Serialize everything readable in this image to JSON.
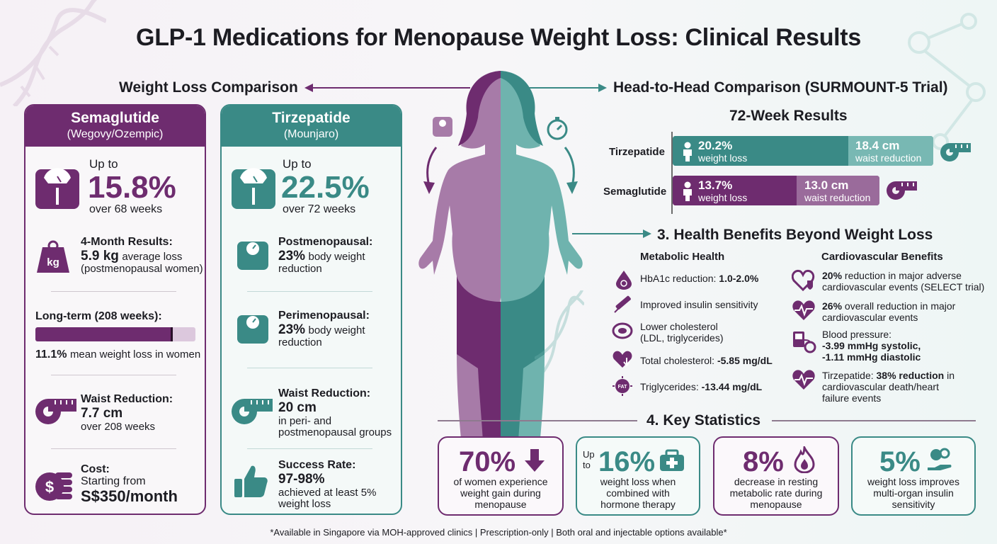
{
  "title": "GLP-1 Medications for Menopause Weight Loss: Clinical Results",
  "weight_loss_comparison": {
    "label": "Weight Loss Comparison"
  },
  "semaglutide": {
    "name": "Semaglutide",
    "brands": "(Wegovy/Ozempic)",
    "up_to": "Up to",
    "max_loss": "15.8%",
    "duration": "over 68 weeks",
    "four_month_title": "4-Month Results:",
    "four_month_value": "5.9 kg",
    "four_month_suffix": "average loss",
    "four_month_note": "(postmenopausal women)",
    "kg_icon_text": "kg",
    "long_term_title": "Long-term (208 weeks):",
    "long_term_progress": 0.86,
    "long_term_value": "11.1%",
    "long_term_suffix": "mean weight loss in women",
    "waist_title": "Waist Reduction:",
    "waist_value": "7.7 cm",
    "waist_duration": "over 208 weeks",
    "cost_title": "Cost:",
    "cost_prefix": "Starting from",
    "cost_value": "S$350/month"
  },
  "tirzepatide": {
    "name": "Tirzepatide",
    "brands": "(Mounjaro)",
    "up_to": "Up to",
    "max_loss": "22.5%",
    "duration": "over 72 weeks",
    "post_title": "Postmenopausal:",
    "post_value": "23%",
    "post_suffix": "body weight",
    "post_suffix2": "reduction",
    "peri_title": "Perimenopausal:",
    "peri_value": "23%",
    "peri_suffix": "body weight",
    "peri_suffix2": "reduction",
    "waist_title": "Waist Reduction:",
    "waist_value": "20 cm",
    "waist_note1": "in peri- and",
    "waist_note2": "postmenopausal groups",
    "success_title": "Success Rate:",
    "success_value": "97-98%",
    "success_note1": "achieved at least 5%",
    "success_note2": "weight loss"
  },
  "head_to_head": {
    "label": "Head-to-Head Comparison (SURMOUNT-5 Trial)",
    "subtitle": "72-Week Results",
    "rows": [
      {
        "drug": "Tirzepatide",
        "weight_value": "20.2%",
        "weight_label": "weight loss",
        "waist_value": "18.4 cm",
        "waist_label": "waist reduction",
        "color": "#3a8a86"
      },
      {
        "drug": "Semaglutide",
        "weight_value": "13.7%",
        "weight_label": "weight loss",
        "waist_value": "13.0 cm",
        "waist_label": "waist reduction",
        "color": "#6e2c6f"
      }
    ]
  },
  "health_benefits": {
    "label": "3. Health Benefits Beyond Weight Loss",
    "metabolic_title": "Metabolic Health",
    "cardio_title": "Cardiovascular Benefits",
    "metabolic": [
      {
        "text": "HbA1c reduction: ",
        "bold": "1.0-2.0%",
        "icon": "blood-drop-icon"
      },
      {
        "text": "Improved insulin sensitivity",
        "bold": "",
        "icon": "insulin-pen-icon"
      },
      {
        "text": "Lower cholesterol",
        "text2": "(LDL, triglycerides)",
        "bold": "",
        "icon": "artery-icon"
      },
      {
        "text": "Total cholesterol: ",
        "bold": "-5.85 mg/dL",
        "icon": "heart-down-icon"
      },
      {
        "text": "Triglycerides: ",
        "bold": "-13.44 mg/dL",
        "icon": "fat-cell-icon"
      }
    ],
    "fat_icon_text": "FAT",
    "cardio": [
      {
        "bold": "20%",
        "text": " reduction in major adverse",
        "text2": "cardiovascular events (SELECT trial)",
        "icon": "heart-shield-icon"
      },
      {
        "bold": "26%",
        "text": " overall reduction in major",
        "text2": "cardiovascular events",
        "icon": "heartbeat-icon"
      },
      {
        "text": "Blood pressure:",
        "bold2": "-3.99 mmHg systolic,",
        "bold3": "-1.11 mmHg diastolic",
        "icon": "blood-pressure-icon"
      },
      {
        "text": "Tirzepatide: ",
        "bold": "38% reduction",
        "text_after": " in",
        "text2": "cardiovascular death/heart",
        "text3": "failure events",
        "icon": "heart-pulse-icon"
      }
    ]
  },
  "key_statistics": {
    "label": "4. Key Statistics",
    "items": [
      {
        "value": "70%",
        "prefix": "",
        "lines": [
          "of women experience",
          "weight gain during",
          "menopause"
        ],
        "icon": "arrow-down-icon"
      },
      {
        "value": "16%",
        "prefix": "Up to",
        "lines": [
          "weight loss when",
          "combined with",
          "hormone therapy"
        ],
        "icon": "medical-kit-icon"
      },
      {
        "value": "8%",
        "prefix": "",
        "lines": [
          "decrease in resting",
          "metabolic rate during",
          "menopause"
        ],
        "icon": "flame-icon"
      },
      {
        "value": "5%",
        "prefix": "",
        "lines": [
          "weight loss improves",
          "multi-organ insulin",
          "sensitivity"
        ],
        "icon": "organ-hand-icon"
      }
    ]
  },
  "footnote": "*Available in Singapore via MOH-approved clinics | Prescription-only | Both oral and injectable options available*",
  "colors": {
    "purple": "#6e2c6f",
    "teal": "#3a8a86",
    "light_purple": "#a77ba8",
    "light_teal": "#6fb3ae"
  }
}
